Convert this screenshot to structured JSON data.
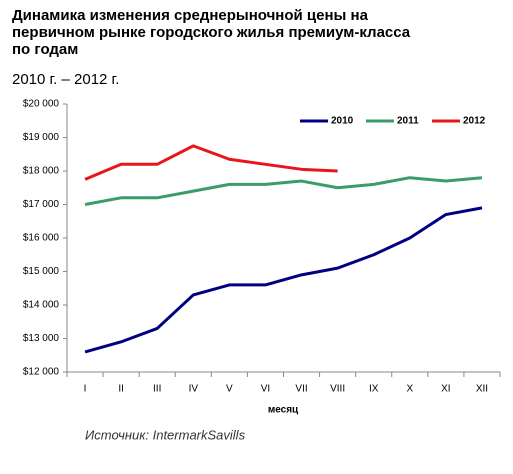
{
  "chart_data": {
    "type": "line",
    "title": [
      "Динамика изменения среднерыночной цены на",
      "первичном рынке городского жилья премиум-класса",
      "по годам"
    ],
    "subtitle": "2010 г. – 2012 г.",
    "x_label": "месяц",
    "source": "Источник: IntermarkSavills",
    "categories": [
      "I",
      "II",
      "III",
      "IV",
      "V",
      "VI",
      "VII",
      "VIII",
      "IX",
      "X",
      "XI",
      "XII"
    ],
    "series": [
      {
        "name": "2010",
        "color": "#000080",
        "values": [
          12600,
          12900,
          13300,
          14300,
          14600,
          14600,
          14900,
          15100,
          15500,
          16000,
          16700,
          16900
        ]
      },
      {
        "name": "2011",
        "color": "#3c9b6a",
        "values": [
          17000,
          17200,
          17200,
          17400,
          17600,
          17600,
          17700,
          17500,
          17600,
          17800,
          17700,
          17800
        ]
      },
      {
        "name": "2012",
        "color": "#e8161b",
        "values": [
          17750,
          18200,
          18200,
          18750,
          18350,
          18200,
          18050,
          18000,
          null,
          null,
          null,
          null
        ]
      }
    ],
    "ylim": [
      12000,
      20000
    ],
    "yticks": [
      {
        "value": 12000,
        "label": "$12 000"
      },
      {
        "value": 13000,
        "label": "$13 000"
      },
      {
        "value": 14000,
        "label": "$14 000"
      },
      {
        "value": 15000,
        "label": "$15 000"
      },
      {
        "value": 16000,
        "label": "$16 000"
      },
      {
        "value": 17000,
        "label": "$17 000"
      },
      {
        "value": 18000,
        "label": "$18 000"
      },
      {
        "value": 19000,
        "label": "$19 000"
      },
      {
        "value": 20000,
        "label": "$20 000"
      }
    ],
    "legend": "top-right",
    "grid": false
  }
}
